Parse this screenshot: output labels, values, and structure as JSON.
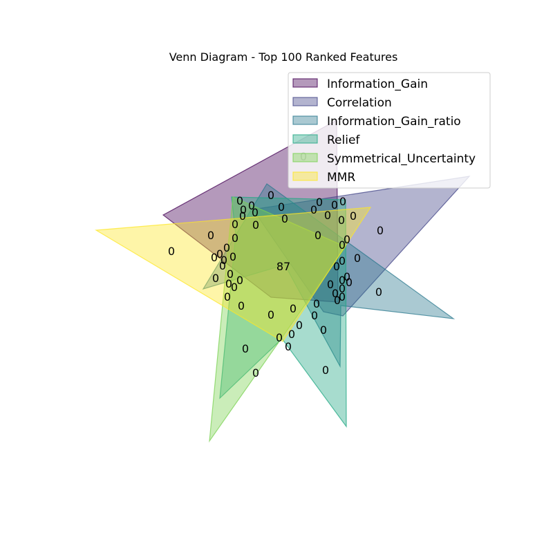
{
  "title": "Venn Diagram - Top 100 Ranked Features",
  "sets": [
    {
      "name": "Information_Gain",
      "color": "#440154"
    },
    {
      "name": "Correlation",
      "color": "#414487"
    },
    {
      "name": "Information_Gain_ratio",
      "color": "#2a788e"
    },
    {
      "name": "Relief",
      "color": "#22a884"
    },
    {
      "name": "Symmetrical_Uncertainty",
      "color": "#7ad151"
    },
    {
      "name": "MMR",
      "color": "#fde725"
    }
  ],
  "center_count": "87",
  "region_counts": [
    "0",
    "0",
    "0",
    "0",
    "0",
    "0",
    "0",
    "0",
    "0",
    "0",
    "0",
    "0",
    "0",
    "0",
    "0",
    "0",
    "0",
    "0",
    "0",
    "0",
    "0",
    "0",
    "0",
    "0",
    "0",
    "0",
    "0",
    "0",
    "0",
    "0",
    "0",
    "0",
    "0",
    "0",
    "0",
    "0",
    "0",
    "0",
    "0",
    "0",
    "0",
    "0",
    "0",
    "0",
    "0",
    "0",
    "0",
    "0",
    "0",
    "0",
    "0",
    "0",
    "0",
    "0",
    "0",
    "0",
    "0",
    "0",
    "0",
    "0",
    "0",
    "0",
    "0"
  ]
}
